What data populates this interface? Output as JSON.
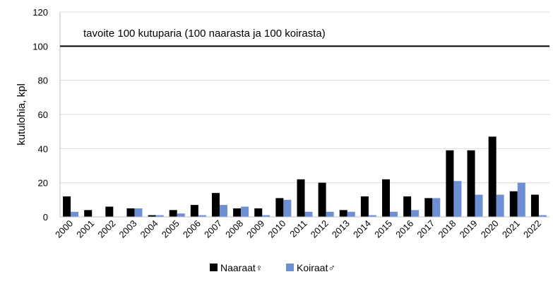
{
  "chart_data": {
    "type": "bar",
    "title": "",
    "xlabel": "",
    "ylabel": "kutulohia, kpl",
    "ylim": [
      0,
      120
    ],
    "yticks": [
      0,
      20,
      40,
      60,
      80,
      100,
      120
    ],
    "grid": "horizontal",
    "legend_position": "bottom",
    "categories": [
      "2000",
      "2001",
      "2002",
      "2003",
      "2004",
      "2005",
      "2006",
      "2007",
      "2008",
      "2009",
      "2010",
      "2011",
      "2012",
      "2013",
      "2014",
      "2015",
      "2016",
      "2017",
      "2018",
      "2019",
      "2020",
      "2021",
      "2022"
    ],
    "series": [
      {
        "name": "Naaraat♀",
        "color": "#000000",
        "values": [
          12,
          4,
          6,
          5,
          1,
          4,
          7,
          14,
          5,
          5,
          11,
          22,
          20,
          4,
          12,
          22,
          12,
          11,
          39,
          39,
          47,
          15,
          13
        ]
      },
      {
        "name": "Koiraat♂",
        "color": "#6f8fd4",
        "values": [
          3,
          0,
          0,
          5,
          1,
          2,
          1,
          7,
          6,
          1,
          10,
          3,
          3,
          3,
          1,
          3,
          4,
          11,
          21,
          13,
          13,
          20,
          1
        ]
      }
    ],
    "target": {
      "value": 100,
      "label": "tavoite 100 kutuparia (100 naarasta ja 100 koirasta)",
      "color": "#000000"
    }
  }
}
